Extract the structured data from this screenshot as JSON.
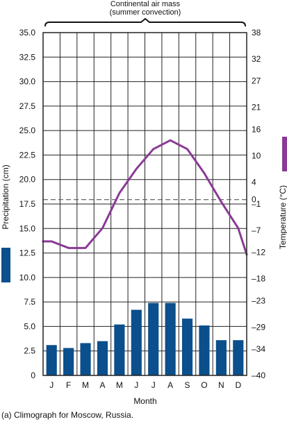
{
  "chart_data": {
    "type": "bar+line",
    "annotation": [
      "Continental air mass",
      "(summer convection)"
    ],
    "caption": "(a) Climograph for Moscow, Russia.",
    "xlabel": "Month",
    "categories": [
      "J",
      "F",
      "M",
      "A",
      "M",
      "J",
      "J",
      "A",
      "S",
      "O",
      "N",
      "D"
    ],
    "left_axis": {
      "label": "Precipitation (cm)",
      "ylim": [
        0,
        35
      ],
      "ticks": [
        "0",
        "2.5",
        "5.0",
        "7.5",
        "10.0",
        "12.5",
        "15.0",
        "17.5",
        "20.0",
        "22.5",
        "25.0",
        "27.5",
        "30.0",
        "32.5",
        "35.0"
      ]
    },
    "right_axis": {
      "label": "Temperature (°C)",
      "ylim": [
        -40,
        38
      ],
      "ticks": [
        "–40",
        "–34",
        "–29",
        "–23",
        "–18",
        "–12",
        "–7",
        "–1",
        "0",
        "4",
        "10",
        "16",
        "21",
        "27",
        "32",
        "38"
      ]
    },
    "precipitation": [
      3.1,
      2.8,
      3.3,
      3.5,
      5.2,
      6.7,
      7.4,
      7.4,
      5.8,
      5.1,
      3.6,
      3.6
    ],
    "temperature": [
      -9.5,
      -11,
      -11,
      -6.5,
      1.5,
      7,
      11.5,
      13.5,
      11.5,
      6,
      -0.5,
      -6.5,
      -11
    ],
    "temperature_edges": [
      -9.5,
      -12.5
    ],
    "freezing_line": 0,
    "colors": {
      "bars": "#0b4f8c",
      "line": "#8a3a96",
      "grid": "#222222",
      "freezing": "#555555"
    }
  }
}
